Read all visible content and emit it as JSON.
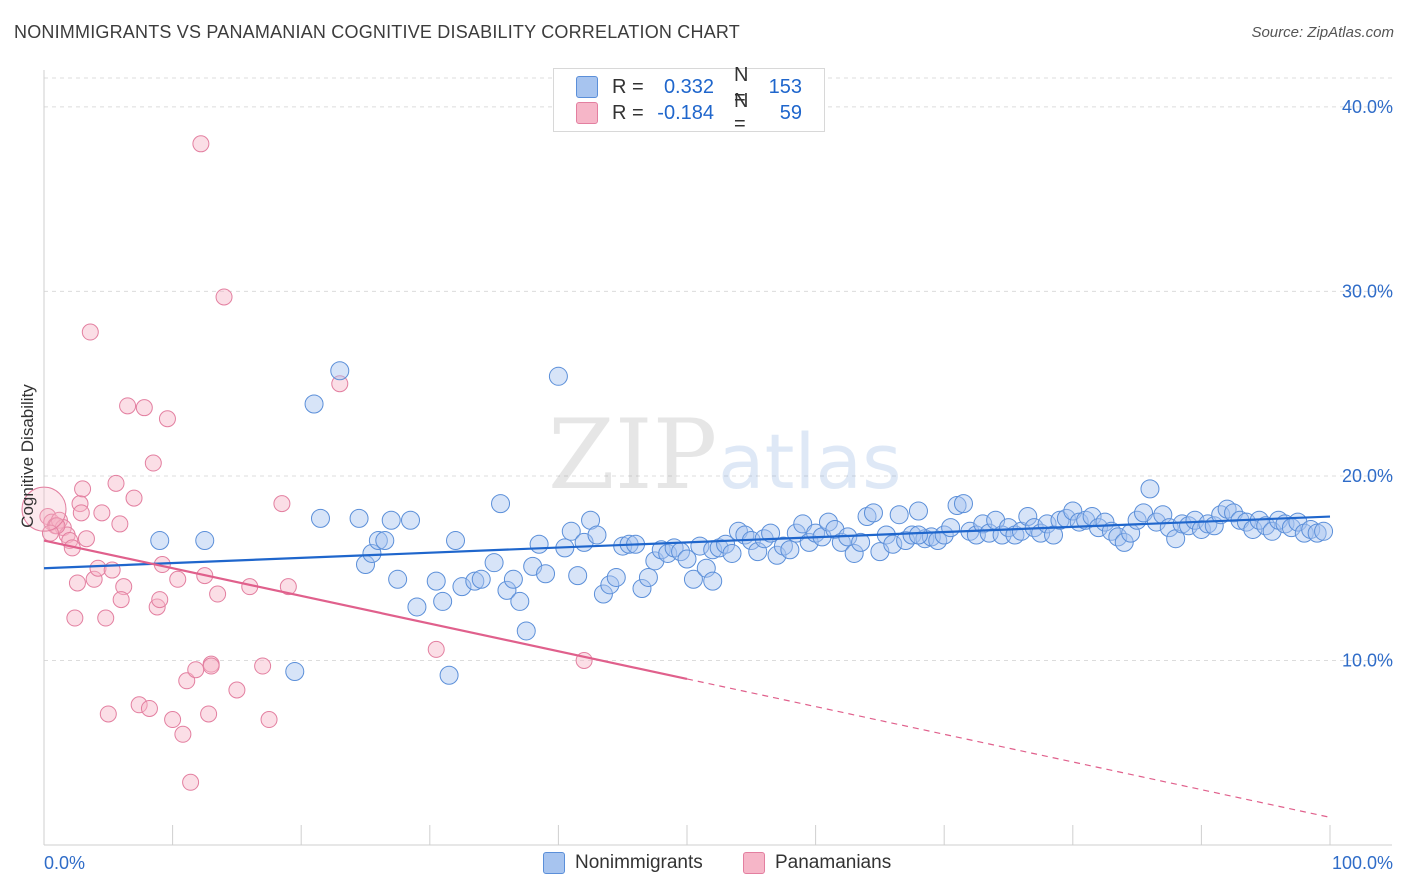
{
  "title": "NONIMMIGRANTS VS PANAMANIAN COGNITIVE DISABILITY CORRELATION CHART",
  "source": "Source: ZipAtlas.com",
  "watermark": {
    "zip": "ZIP",
    "atlas": "atlas"
  },
  "legend": {
    "rows": [
      {
        "r_label": "R =",
        "r_value": "0.332",
        "n_label": "N =",
        "n_value": "153",
        "color": "#a7c4ef"
      },
      {
        "r_label": "R =",
        "r_value": "-0.184",
        "n_label": "N =",
        "n_value": "59",
        "color": "#f6b6c8"
      }
    ]
  },
  "bottom_legend": {
    "items": [
      "Nonimmigrants",
      "Panamanians"
    ]
  },
  "colors": {
    "blue_fill": "#a7c4ef",
    "blue_stroke": "#5b8fd9",
    "blue_line": "#1f66cc",
    "pink_fill": "#f6b6c8",
    "pink_stroke": "#e37fa0",
    "pink_line": "#e0608c",
    "tick_text": "#2f6cc8",
    "grid": "#dcdcdc"
  },
  "chart_data": {
    "type": "scatter",
    "title": "NONIMMIGRANTS VS PANAMANIAN COGNITIVE DISABILITY CORRELATION CHART",
    "xlabel": "",
    "ylabel": "Cognitive Disability",
    "xlim": [
      0,
      100
    ],
    "ylim": [
      0,
      42
    ],
    "x_tick_labels": {
      "left": "0.0%",
      "right": "100.0%"
    },
    "y_ticks": [
      {
        "value": 10,
        "label": "10.0%"
      },
      {
        "value": 20,
        "label": "20.0%"
      },
      {
        "value": 30,
        "label": "30.0%"
      },
      {
        "value": 40,
        "label": "40.0%"
      }
    ],
    "grid": "horizontal dashed",
    "series": [
      {
        "name": "Nonimmigrants",
        "color": "#5b8fd9",
        "trend": {
          "x0": 0,
          "y0": 15.0,
          "x1": 100,
          "y1": 17.8
        },
        "points": [
          [
            9,
            16.5
          ],
          [
            12.5,
            16.5
          ],
          [
            19.5,
            9.4
          ],
          [
            21,
            23.9
          ],
          [
            21.5,
            17.7
          ],
          [
            23,
            25.7
          ],
          [
            24.5,
            17.7
          ],
          [
            25,
            15.2
          ],
          [
            25.5,
            15.8
          ],
          [
            26,
            16.5
          ],
          [
            26.5,
            16.5
          ],
          [
            27,
            17.6
          ],
          [
            27.5,
            14.4
          ],
          [
            28.5,
            17.6
          ],
          [
            29,
            12.9
          ],
          [
            30.5,
            14.3
          ],
          [
            31,
            13.2
          ],
          [
            31.5,
            9.2
          ],
          [
            32,
            16.5
          ],
          [
            32.5,
            14.0
          ],
          [
            33.5,
            14.3
          ],
          [
            34,
            14.4
          ],
          [
            35,
            15.3
          ],
          [
            35.5,
            18.5
          ],
          [
            36,
            13.8
          ],
          [
            36.5,
            14.4
          ],
          [
            37,
            13.2
          ],
          [
            37.5,
            11.6
          ],
          [
            38,
            15.1
          ],
          [
            38.5,
            16.3
          ],
          [
            39,
            14.7
          ],
          [
            40,
            25.4
          ],
          [
            40.5,
            16.1
          ],
          [
            41,
            17.0
          ],
          [
            41.5,
            14.6
          ],
          [
            42,
            16.4
          ],
          [
            42.5,
            17.6
          ],
          [
            43,
            16.8
          ],
          [
            43.5,
            13.6
          ],
          [
            44,
            14.1
          ],
          [
            44.5,
            14.5
          ],
          [
            45,
            16.2
          ],
          [
            45.5,
            16.3
          ],
          [
            46,
            16.3
          ],
          [
            46.5,
            13.9
          ],
          [
            47,
            14.5
          ],
          [
            47.5,
            15.4
          ],
          [
            48,
            16.0
          ],
          [
            48.5,
            15.8
          ],
          [
            49,
            16.1
          ],
          [
            49.5,
            15.9
          ],
          [
            50,
            15.5
          ],
          [
            50.5,
            14.4
          ],
          [
            51,
            16.2
          ],
          [
            51.5,
            15.0
          ],
          [
            52,
            16.0
          ],
          [
            52.5,
            16.1
          ],
          [
            53,
            16.3
          ],
          [
            53.5,
            15.8
          ],
          [
            54,
            17.0
          ],
          [
            54.5,
            16.8
          ],
          [
            55,
            16.5
          ],
          [
            55.5,
            15.9
          ],
          [
            56,
            16.6
          ],
          [
            56.5,
            16.9
          ],
          [
            57,
            15.7
          ],
          [
            57.5,
            16.2
          ],
          [
            58,
            16.0
          ],
          [
            58.5,
            16.9
          ],
          [
            59,
            17.4
          ],
          [
            59.5,
            16.4
          ],
          [
            60,
            16.9
          ],
          [
            60.5,
            16.7
          ],
          [
            61,
            17.5
          ],
          [
            61.5,
            17.1
          ],
          [
            62,
            16.4
          ],
          [
            62.5,
            16.7
          ],
          [
            63,
            15.8
          ],
          [
            63.5,
            16.4
          ],
          [
            64,
            17.8
          ],
          [
            64.5,
            18.0
          ],
          [
            65,
            15.9
          ],
          [
            65.5,
            16.8
          ],
          [
            66,
            16.3
          ],
          [
            66.5,
            17.9
          ],
          [
            67,
            16.5
          ],
          [
            67.5,
            16.8
          ],
          [
            68,
            18.1
          ],
          [
            68.5,
            16.6
          ],
          [
            69,
            16.7
          ],
          [
            69.5,
            16.5
          ],
          [
            70,
            16.8
          ],
          [
            70.5,
            17.2
          ],
          [
            71,
            18.4
          ],
          [
            71.5,
            18.5
          ],
          [
            72,
            17.0
          ],
          [
            72.5,
            16.8
          ],
          [
            73,
            17.4
          ],
          [
            73.5,
            16.9
          ],
          [
            74,
            17.6
          ],
          [
            74.5,
            16.8
          ],
          [
            75,
            17.2
          ],
          [
            75.5,
            16.8
          ],
          [
            76,
            17.0
          ],
          [
            76.5,
            17.8
          ],
          [
            77,
            17.2
          ],
          [
            77.5,
            16.9
          ],
          [
            78,
            17.4
          ],
          [
            78.5,
            16.8
          ],
          [
            79,
            17.6
          ],
          [
            79.5,
            17.7
          ],
          [
            80,
            18.1
          ],
          [
            80.5,
            17.5
          ],
          [
            81,
            17.6
          ],
          [
            81.5,
            17.8
          ],
          [
            82,
            17.2
          ],
          [
            82.5,
            17.5
          ],
          [
            83,
            17.0
          ],
          [
            83.5,
            16.7
          ],
          [
            84,
            16.4
          ],
          [
            84.5,
            16.9
          ],
          [
            85,
            17.6
          ],
          [
            85.5,
            18.0
          ],
          [
            86,
            19.3
          ],
          [
            86.5,
            17.5
          ],
          [
            87,
            17.9
          ],
          [
            87.5,
            17.2
          ],
          [
            88,
            16.6
          ],
          [
            88.5,
            17.4
          ],
          [
            89,
            17.3
          ],
          [
            89.5,
            17.6
          ],
          [
            90,
            17.1
          ],
          [
            90.5,
            17.4
          ],
          [
            91,
            17.3
          ],
          [
            91.5,
            17.9
          ],
          [
            92,
            18.2
          ],
          [
            92.5,
            18.0
          ],
          [
            93,
            17.6
          ],
          [
            93.5,
            17.5
          ],
          [
            94,
            17.1
          ],
          [
            94.5,
            17.6
          ],
          [
            95,
            17.3
          ],
          [
            95.5,
            17.0
          ],
          [
            96,
            17.6
          ],
          [
            96.5,
            17.4
          ],
          [
            97,
            17.2
          ],
          [
            97.5,
            17.5
          ],
          [
            98,
            16.9
          ],
          [
            98.5,
            17.1
          ],
          [
            99,
            16.9
          ],
          [
            99.5,
            17.0
          ],
          [
            68,
            16.8
          ],
          [
            52,
            14.3
          ]
        ]
      },
      {
        "name": "Panamanians",
        "color": "#e37fa0",
        "trend": {
          "x0": 0,
          "y0": 16.5,
          "x1": 50,
          "y1": 9.0,
          "dashed_to": {
            "x": 100,
            "y": 1.5
          }
        },
        "points": [
          [
            0.3,
            17.8
          ],
          [
            0.6,
            17.5
          ],
          [
            0.9,
            17.3
          ],
          [
            1.2,
            17.6
          ],
          [
            1.5,
            17.2
          ],
          [
            1.8,
            16.8
          ],
          [
            2,
            16.5
          ],
          [
            2.2,
            16.1
          ],
          [
            2.4,
            12.3
          ],
          [
            2.6,
            14.2
          ],
          [
            2.8,
            18.5
          ],
          [
            3,
            19.3
          ],
          [
            3.3,
            16.6
          ],
          [
            3.6,
            27.8
          ],
          [
            3.9,
            14.4
          ],
          [
            4.2,
            15.0
          ],
          [
            4.5,
            18.0
          ],
          [
            4.8,
            12.3
          ],
          [
            5,
            7.1
          ],
          [
            5.3,
            14.9
          ],
          [
            5.6,
            19.6
          ],
          [
            5.9,
            17.4
          ],
          [
            6.2,
            14.0
          ],
          [
            6.5,
            23.8
          ],
          [
            7,
            18.8
          ],
          [
            7.4,
            7.6
          ],
          [
            7.8,
            23.7
          ],
          [
            8.2,
            7.4
          ],
          [
            8.5,
            20.7
          ],
          [
            8.8,
            12.9
          ],
          [
            9.2,
            15.2
          ],
          [
            9.6,
            23.1
          ],
          [
            10,
            6.8
          ],
          [
            10.4,
            14.4
          ],
          [
            10.8,
            6.0
          ],
          [
            11.1,
            8.9
          ],
          [
            11.4,
            3.4
          ],
          [
            11.8,
            9.5
          ],
          [
            12.2,
            38.0
          ],
          [
            12.5,
            14.6
          ],
          [
            12.8,
            7.1
          ],
          [
            13,
            9.8
          ],
          [
            13.5,
            13.6
          ],
          [
            14,
            29.7
          ],
          [
            15,
            8.4
          ],
          [
            16,
            14.0
          ],
          [
            17,
            9.7
          ],
          [
            17.5,
            6.8
          ],
          [
            18.5,
            18.5
          ],
          [
            19,
            14.0
          ],
          [
            23,
            25.0
          ],
          [
            30.5,
            10.6
          ],
          [
            42,
            10.0
          ],
          [
            9,
            13.3
          ],
          [
            1,
            17.3
          ],
          [
            2.9,
            18.0
          ],
          [
            0.5,
            16.9
          ],
          [
            6,
            13.3
          ],
          [
            13,
            9.7
          ]
        ]
      }
    ]
  }
}
